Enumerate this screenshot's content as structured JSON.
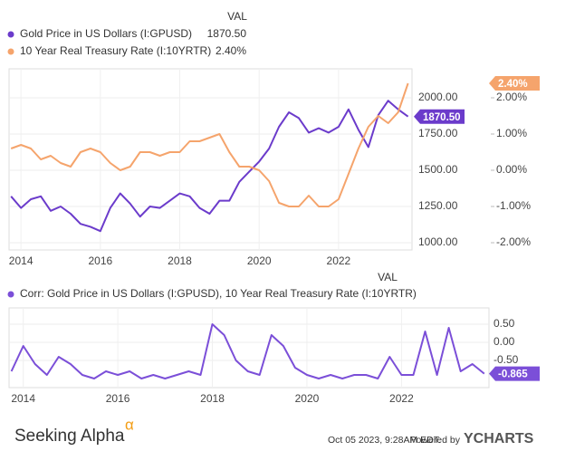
{
  "chart_data": [
    {
      "type": "line",
      "legend_header": "VAL",
      "x": [
        2013.75,
        2014,
        2014.25,
        2014.5,
        2014.75,
        2015,
        2015.25,
        2015.5,
        2015.75,
        2016,
        2016.25,
        2016.5,
        2016.75,
        2017,
        2017.25,
        2017.5,
        2017.75,
        2018,
        2018.25,
        2018.5,
        2018.75,
        2019,
        2019.25,
        2019.5,
        2019.75,
        2020,
        2020.25,
        2020.5,
        2020.75,
        2021,
        2021.25,
        2021.5,
        2021.75,
        2022,
        2022.25,
        2022.5,
        2022.75,
        2023,
        2023.25,
        2023.5,
        2023.75
      ],
      "xlim": [
        2013.7,
        2023.85
      ],
      "xticks": [
        2014,
        2016,
        2018,
        2020,
        2022
      ],
      "ylim": [
        950,
        2200
      ],
      "yticks": [
        {
          "value": 1000,
          "label": "1000.00"
        },
        {
          "value": 1250,
          "label": "1250.00"
        },
        {
          "value": 1500,
          "label": "1500.00"
        },
        {
          "value": 1750,
          "label": "1750.00"
        },
        {
          "value": 2000,
          "label": "2000.00"
        }
      ],
      "y2lim": [
        -2.2,
        2.8
      ],
      "y2ticks": [
        {
          "value": -2,
          "label": "-2.00%"
        },
        {
          "value": -1,
          "label": "-1.00%"
        },
        {
          "value": 0,
          "label": "0.00%"
        },
        {
          "value": 1,
          "label": "1.00%"
        },
        {
          "value": 2,
          "label": "2.00%"
        }
      ],
      "grid": true,
      "series": [
        {
          "name": "Gold Price in US Dollars (I:GPUSD)",
          "color": "#6b3bcb",
          "last_label": "1870.50",
          "values": [
            1320,
            1240,
            1300,
            1320,
            1220,
            1250,
            1200,
            1130,
            1110,
            1080,
            1240,
            1340,
            1270,
            1180,
            1250,
            1240,
            1290,
            1340,
            1320,
            1240,
            1200,
            1290,
            1290,
            1420,
            1490,
            1560,
            1650,
            1800,
            1900,
            1860,
            1760,
            1790,
            1760,
            1800,
            1920,
            1780,
            1660,
            1880,
            1980,
            1920,
            1870.5
          ]
        },
        {
          "name": "10 Year Real Treasury Rate (I:10YRTR)",
          "color": "#f5a46c",
          "axis": "y2",
          "last_label": "2.40%",
          "values": [
            0.6,
            0.7,
            0.6,
            0.3,
            0.4,
            0.2,
            0.1,
            0.5,
            0.6,
            0.5,
            0.2,
            0.0,
            0.1,
            0.5,
            0.5,
            0.4,
            0.5,
            0.5,
            0.8,
            0.8,
            0.9,
            1.0,
            0.5,
            0.1,
            0.1,
            0.0,
            -0.3,
            -0.9,
            -1.0,
            -1.0,
            -0.7,
            -1.0,
            -1.0,
            -0.8,
            -0.1,
            0.6,
            1.2,
            1.5,
            1.3,
            1.6,
            2.4
          ]
        }
      ]
    },
    {
      "type": "line",
      "legend_header": "VAL",
      "x": [
        2013.75,
        2014,
        2014.25,
        2014.5,
        2014.75,
        2015,
        2015.25,
        2015.5,
        2015.75,
        2016,
        2016.25,
        2016.5,
        2016.75,
        2017,
        2017.25,
        2017.5,
        2017.75,
        2018,
        2018.25,
        2018.5,
        2018.75,
        2019,
        2019.25,
        2019.5,
        2019.75,
        2020,
        2020.25,
        2020.5,
        2020.75,
        2021,
        2021.25,
        2021.5,
        2021.75,
        2022,
        2022.25,
        2022.5,
        2022.75,
        2023,
        2023.25,
        2023.5,
        2023.75
      ],
      "xlim": [
        2013.7,
        2023.85
      ],
      "xticks": [
        2014,
        2016,
        2018,
        2020,
        2022
      ],
      "ylim": [
        -1.25,
        0.95
      ],
      "yticks": [
        {
          "value": -0.5,
          "label": "-0.50"
        },
        {
          "value": 0,
          "label": "0.00"
        },
        {
          "value": 0.5,
          "label": "0.50"
        }
      ],
      "grid": true,
      "series": [
        {
          "name": "Corr: Gold Price in US Dollars (I:GPUSD), 10 Year Real Treasury Rate   (I:10YRTR)",
          "color": "#7b4fd8",
          "last_label": "-0.865",
          "values": [
            -0.8,
            -0.1,
            -0.6,
            -0.9,
            -0.4,
            -0.6,
            -0.9,
            -1.0,
            -0.8,
            -0.9,
            -0.8,
            -1.0,
            -0.9,
            -1.0,
            -0.9,
            -0.8,
            -0.9,
            0.5,
            0.2,
            -0.5,
            -0.8,
            -0.9,
            0.2,
            -0.1,
            -0.7,
            -0.9,
            -1.0,
            -0.9,
            -1.0,
            -0.9,
            -0.9,
            -1.0,
            -0.4,
            -0.9,
            -0.9,
            0.3,
            -0.9,
            0.4,
            -0.8,
            -0.6,
            -0.865
          ]
        }
      ]
    }
  ],
  "footer": {
    "brand": "Seeking Alpha",
    "brand_mark": "α",
    "timestamp": "Oct 05 2023, 9:28AM EDT.",
    "powered": "Powered by",
    "provider": "YCHARTS"
  }
}
